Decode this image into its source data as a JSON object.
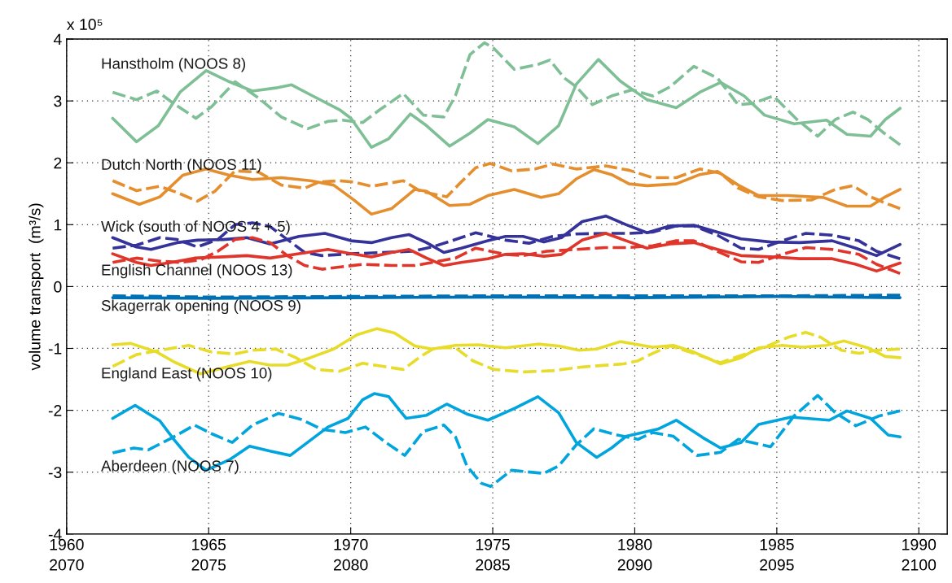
{
  "chart_data": {
    "type": "line",
    "ylabel": "volume transport  (m³/s)",
    "annotations": [
      "x 10⁵"
    ],
    "xlim": [
      1960,
      1991
    ],
    "xticks": [
      1960,
      1965,
      1970,
      1975,
      1980,
      1985,
      1990
    ],
    "x2lim": [
      2070,
      2101
    ],
    "x2ticks": [
      2070,
      2075,
      2080,
      2085,
      2090,
      2095,
      2100
    ],
    "ylim": [
      -4,
      4
    ],
    "yticks": [
      -4,
      -3,
      -2,
      -1,
      0,
      1,
      2,
      3,
      4
    ],
    "grid": true,
    "marker": "none",
    "series": [
      {
        "name": "Hanstholm (NOOS 8)",
        "color": "#7fbf96",
        "line_style": "solid",
        "x": [
          1961.62,
          1962.46,
          1963.23,
          1963.99,
          1964.91,
          1965.73,
          1966.54,
          1967.36,
          1967.92,
          1968.58,
          1969.6,
          1970.01,
          1970.73,
          1971.34,
          1972.1,
          1972.67,
          1973.48,
          1974.2,
          1974.83,
          1975.76,
          1976.59,
          1977.32,
          1977.94,
          1978.72,
          1979.49,
          1980.43,
          1981.46,
          1982.29,
          1983.02,
          1983.85,
          1984.57,
          1985.61,
          1986.75,
          1987.47,
          1988.3,
          1988.82,
          1989.34
        ],
        "values": [
          2.72,
          2.34,
          2.6,
          3.14,
          3.49,
          3.31,
          3.16,
          3.21,
          3.26,
          3.1,
          2.86,
          2.72,
          2.25,
          2.39,
          2.79,
          2.6,
          2.27,
          2.48,
          2.7,
          2.58,
          2.31,
          2.6,
          3.27,
          3.67,
          3.32,
          3.02,
          2.89,
          3.14,
          3.3,
          3.08,
          2.77,
          2.63,
          2.69,
          2.46,
          2.43,
          2.7,
          2.88
        ]
      },
      {
        "color": "#7fbf96",
        "line_style": "dashed",
        "x": [
          1961.62,
          1962.46,
          1963.18,
          1963.79,
          1964.55,
          1965.11,
          1965.93,
          1966.75,
          1967.56,
          1968.48,
          1969.2,
          1969.71,
          1970.42,
          1971.03,
          1971.85,
          1972.56,
          1973.28,
          1973.69,
          1974.2,
          1974.71,
          1975.04,
          1975.76,
          1976.59,
          1977.01,
          1977.52,
          1977.94,
          1978.51,
          1979.18,
          1979.91,
          1980.63,
          1981.25,
          1982.08,
          1982.91,
          1983.64,
          1984.16,
          1984.88,
          1985.71,
          1986.44,
          1987.06,
          1987.68,
          1988.2,
          1988.72,
          1989.34
        ],
        "values": [
          3.14,
          3.02,
          3.16,
          2.95,
          2.72,
          2.91,
          3.31,
          3.05,
          2.74,
          2.55,
          2.67,
          2.69,
          2.65,
          2.86,
          3.12,
          2.77,
          2.74,
          3.09,
          3.75,
          3.94,
          3.85,
          3.51,
          3.59,
          3.66,
          3.37,
          3.23,
          2.94,
          3.08,
          3.18,
          3.08,
          3.23,
          3.56,
          3.37,
          2.94,
          2.96,
          3.08,
          2.7,
          2.43,
          2.7,
          2.82,
          2.7,
          2.5,
          2.29
        ]
      },
      {
        "name": "Dutch North (NOOS 11)",
        "color": "#e58e2e",
        "line_style": "solid",
        "x": [
          1961.62,
          1962.56,
          1963.28,
          1964.09,
          1964.91,
          1965.73,
          1966.54,
          1967.56,
          1968.58,
          1969.4,
          1970.11,
          1970.73,
          1971.44,
          1972.26,
          1972.67,
          1973.48,
          1974.2,
          1974.83,
          1975.76,
          1976.7,
          1977.32,
          1977.94,
          1978.56,
          1979.18,
          1979.8,
          1980.43,
          1981.46,
          1982.29,
          1982.91,
          1983.64,
          1984.36,
          1985.4,
          1986.64,
          1987.47,
          1988.3,
          1988.82,
          1989.34
        ],
        "values": [
          1.5,
          1.33,
          1.45,
          1.8,
          1.9,
          1.8,
          1.73,
          1.76,
          1.71,
          1.64,
          1.4,
          1.17,
          1.26,
          1.57,
          1.54,
          1.31,
          1.33,
          1.47,
          1.57,
          1.44,
          1.5,
          1.74,
          1.89,
          1.81,
          1.66,
          1.63,
          1.66,
          1.81,
          1.86,
          1.64,
          1.47,
          1.47,
          1.44,
          1.3,
          1.3,
          1.45,
          1.57
        ]
      },
      {
        "color": "#e58e2e",
        "line_style": "dashed",
        "x": [
          1961.62,
          1962.46,
          1963.28,
          1963.89,
          1964.6,
          1965.22,
          1965.93,
          1966.75,
          1967.56,
          1968.38,
          1968.89,
          1969.6,
          1970.11,
          1970.73,
          1971.85,
          1972.46,
          1973.38,
          1973.89,
          1974.4,
          1974.91,
          1975.66,
          1976.49,
          1977.11,
          1977.94,
          1978.98,
          1979.8,
          1980.63,
          1981.46,
          1982.29,
          1983.02,
          1983.64,
          1984.36,
          1985.19,
          1986.23,
          1987.06,
          1987.68,
          1988.3,
          1988.82,
          1989.34
        ],
        "values": [
          1.71,
          1.55,
          1.62,
          1.52,
          1.38,
          1.54,
          1.87,
          1.85,
          1.64,
          1.59,
          1.69,
          1.71,
          1.69,
          1.62,
          1.71,
          1.54,
          1.45,
          1.69,
          1.92,
          1.99,
          1.87,
          1.9,
          1.98,
          1.9,
          1.95,
          1.88,
          1.76,
          1.76,
          1.9,
          1.83,
          1.59,
          1.45,
          1.39,
          1.4,
          1.57,
          1.63,
          1.45,
          1.35,
          1.26
        ]
      },
      {
        "name": "Wick (south of NOOS 4 + 5)",
        "color": "#35339a",
        "line_style": "solid",
        "x": [
          1961.62,
          1962.46,
          1962.97,
          1963.89,
          1964.6,
          1965.52,
          1966.34,
          1967.16,
          1968.18,
          1969.09,
          1970.01,
          1970.73,
          1971.44,
          1972.05,
          1972.67,
          1973.28,
          1973.89,
          1974.83,
          1975.45,
          1976.07,
          1976.8,
          1977.42,
          1978.15,
          1978.98,
          1979.7,
          1980.43,
          1981.25,
          1982.08,
          1982.91,
          1983.74,
          1984.78,
          1985.81,
          1986.95,
          1987.78,
          1988.51,
          1989.34
        ],
        "values": [
          0.79,
          0.64,
          0.6,
          0.71,
          0.75,
          0.76,
          0.79,
          0.69,
          0.81,
          0.86,
          0.74,
          0.71,
          0.79,
          0.84,
          0.71,
          0.55,
          0.62,
          0.74,
          0.81,
          0.81,
          0.72,
          0.79,
          1.05,
          1.14,
          1.0,
          0.87,
          0.98,
          0.99,
          0.88,
          0.77,
          0.72,
          0.71,
          0.74,
          0.62,
          0.5,
          0.68
        ]
      },
      {
        "color": "#35339a",
        "line_style": "dashed",
        "x": [
          1961.62,
          1962.46,
          1963.28,
          1963.89,
          1964.6,
          1965.32,
          1965.93,
          1966.54,
          1967.16,
          1967.77,
          1968.38,
          1968.99,
          1970.01,
          1971.13,
          1972.16,
          1972.87,
          1973.69,
          1974.4,
          1975.45,
          1976.28,
          1977.11,
          1977.94,
          1978.98,
          1979.8,
          1980.63,
          1981.46,
          1982.08,
          1982.91,
          1983.74,
          1984.36,
          1985.19,
          1986.02,
          1986.95,
          1987.89,
          1988.51,
          1989.34
        ],
        "values": [
          0.62,
          0.67,
          0.79,
          0.76,
          0.64,
          0.76,
          1.0,
          1.03,
          0.97,
          0.76,
          0.55,
          0.5,
          0.53,
          0.55,
          0.57,
          0.64,
          0.76,
          0.87,
          0.75,
          0.7,
          0.81,
          0.85,
          0.86,
          0.86,
          0.88,
          0.98,
          0.98,
          0.83,
          0.62,
          0.6,
          0.74,
          0.86,
          0.83,
          0.74,
          0.57,
          0.45
        ]
      },
      {
        "name": "English Channel (NOOS 13)",
        "color": "#e0352a",
        "line_style": "solid",
        "x": [
          1961.62,
          1962.46,
          1962.97,
          1963.69,
          1964.5,
          1965.52,
          1966.34,
          1967.16,
          1968.18,
          1969.2,
          1970.01,
          1970.73,
          1971.44,
          1972.05,
          1972.67,
          1973.28,
          1973.89,
          1974.83,
          1975.45,
          1976.07,
          1976.8,
          1977.42,
          1978.15,
          1978.98,
          1979.7,
          1980.43,
          1981.25,
          1982.08,
          1982.91,
          1983.74,
          1984.78,
          1985.81,
          1986.95,
          1987.78,
          1988.51,
          1989.34
        ],
        "values": [
          0.53,
          0.39,
          0.34,
          0.39,
          0.46,
          0.48,
          0.5,
          0.46,
          0.53,
          0.6,
          0.53,
          0.48,
          0.55,
          0.6,
          0.46,
          0.34,
          0.39,
          0.45,
          0.52,
          0.53,
          0.49,
          0.52,
          0.75,
          0.86,
          0.74,
          0.62,
          0.69,
          0.71,
          0.6,
          0.5,
          0.48,
          0.45,
          0.45,
          0.36,
          0.25,
          0.38
        ]
      },
      {
        "color": "#e0352a",
        "line_style": "dashed",
        "x": [
          1961.62,
          1962.46,
          1963.28,
          1963.99,
          1964.71,
          1965.32,
          1965.93,
          1966.54,
          1967.16,
          1967.77,
          1968.38,
          1968.99,
          1969.71,
          1970.42,
          1971.44,
          1972.26,
          1972.87,
          1973.69,
          1974.4,
          1975.45,
          1976.07,
          1976.9,
          1977.94,
          1978.98,
          1979.8,
          1980.63,
          1981.46,
          1982.08,
          1982.91,
          1983.74,
          1984.36,
          1985.19,
          1986.02,
          1986.95,
          1987.89,
          1988.51,
          1989.34
        ],
        "values": [
          0.39,
          0.46,
          0.41,
          0.39,
          0.43,
          0.57,
          0.76,
          0.79,
          0.71,
          0.5,
          0.34,
          0.28,
          0.32,
          0.36,
          0.34,
          0.34,
          0.39,
          0.46,
          0.62,
          0.52,
          0.5,
          0.57,
          0.6,
          0.63,
          0.63,
          0.66,
          0.74,
          0.74,
          0.57,
          0.4,
          0.39,
          0.52,
          0.63,
          0.6,
          0.52,
          0.36,
          0.21
        ]
      },
      {
        "name": "Skagerrak opening (NOOS 9)",
        "color": "#0070b5",
        "line_style": "solid",
        "x": [
          1961.62,
          1965,
          1970,
          1975,
          1980,
          1985,
          1989.34
        ],
        "values": [
          -0.18,
          -0.19,
          -0.18,
          -0.17,
          -0.18,
          -0.16,
          -0.18
        ]
      },
      {
        "color": "#0070b5",
        "line_style": "dashed",
        "x": [
          1961.62,
          1965,
          1970,
          1975,
          1980,
          1985,
          1989.34
        ],
        "values": [
          -0.15,
          -0.17,
          -0.16,
          -0.15,
          -0.15,
          -0.15,
          -0.14
        ]
      },
      {
        "name": "England East (NOOS 10)",
        "color": "#e8dc2a",
        "line_style": "solid",
        "x": [
          1961.62,
          1962.26,
          1963.18,
          1963.79,
          1964.71,
          1965.73,
          1966.44,
          1967.16,
          1967.77,
          1968.58,
          1969.4,
          1970.22,
          1970.93,
          1971.54,
          1972.26,
          1972.87,
          1973.69,
          1974.5,
          1974.83,
          1975.45,
          1976.59,
          1977.32,
          1978.04,
          1978.66,
          1979.49,
          1980.63,
          1981.36,
          1982.08,
          1983.02,
          1983.74,
          1984.36,
          1985.19,
          1985.92,
          1986.75,
          1987.37,
          1988.2,
          1988.82,
          1989.34
        ],
        "values": [
          -0.94,
          -0.92,
          -1.06,
          -1.22,
          -1.41,
          -1.29,
          -1.21,
          -1.27,
          -1.27,
          -1.15,
          -1.01,
          -0.78,
          -0.68,
          -0.75,
          -0.96,
          -1.01,
          -0.95,
          -0.94,
          -0.96,
          -0.99,
          -0.93,
          -0.96,
          -1.03,
          -1.01,
          -0.89,
          -0.98,
          -0.95,
          -1.06,
          -1.25,
          -1.15,
          -0.99,
          -0.95,
          -0.98,
          -0.95,
          -0.88,
          -0.99,
          -1.13,
          -1.15
        ]
      },
      {
        "color": "#e8dc2a",
        "line_style": "dashed",
        "x": [
          1961.62,
          1962.46,
          1963.28,
          1964.3,
          1965.11,
          1965.93,
          1966.54,
          1967.36,
          1968.07,
          1968.79,
          1969.6,
          1970.42,
          1971.13,
          1971.85,
          1972.46,
          1972.97,
          1973.69,
          1974.3,
          1975.04,
          1976.07,
          1977.11,
          1978.15,
          1979.6,
          1980.11,
          1980.63,
          1981.25,
          1982.08,
          1983.02,
          1983.95,
          1984.78,
          1985.4,
          1986.02,
          1986.54,
          1987.27,
          1987.89,
          1988.51,
          1989.34
        ],
        "values": [
          -1.29,
          -1.1,
          -1.03,
          -0.95,
          -1.06,
          -1.09,
          -1.03,
          -1.01,
          -1.15,
          -1.34,
          -1.37,
          -1.24,
          -1.29,
          -1.34,
          -1.13,
          -0.99,
          -0.99,
          -1.2,
          -1.34,
          -1.38,
          -1.36,
          -1.3,
          -1.25,
          -1.2,
          -1.08,
          -0.96,
          -1.08,
          -1.23,
          -1.08,
          -0.94,
          -0.82,
          -0.74,
          -0.82,
          -1.03,
          -1.08,
          -1.03,
          -1.01
        ]
      },
      {
        "name": "Aberdeen (NOOS 7)",
        "color": "#00a5de",
        "line_style": "solid",
        "x": [
          1961.62,
          1962.41,
          1963.28,
          1963.79,
          1964.3,
          1964.91,
          1965.73,
          1966.44,
          1967.16,
          1967.87,
          1968.48,
          1969.2,
          1969.91,
          1970.42,
          1970.83,
          1971.34,
          1971.95,
          1972.67,
          1973.38,
          1974.09,
          1974.83,
          1975.76,
          1976.59,
          1977.32,
          1977.94,
          1978.66,
          1979.18,
          1979.7,
          1980.84,
          1981.46,
          1982.39,
          1983.02,
          1983.74,
          1984.36,
          1985.5,
          1986.85,
          1987.47,
          1988.3,
          1988.92,
          1989.34
        ],
        "values": [
          -2.13,
          -1.92,
          -2.17,
          -2.48,
          -2.76,
          -2.97,
          -2.8,
          -2.58,
          -2.66,
          -2.73,
          -2.52,
          -2.27,
          -2.13,
          -1.83,
          -1.73,
          -1.78,
          -2.13,
          -2.08,
          -1.9,
          -2.06,
          -2.16,
          -1.97,
          -1.78,
          -2.04,
          -2.52,
          -2.76,
          -2.61,
          -2.42,
          -2.3,
          -2.16,
          -2.44,
          -2.61,
          -2.52,
          -2.23,
          -2.11,
          -2.16,
          -2.01,
          -2.13,
          -2.4,
          -2.43
        ]
      },
      {
        "color": "#00a5de",
        "line_style": "dashed",
        "x": [
          1961.62,
          1962.36,
          1962.87,
          1963.69,
          1964.5,
          1965.11,
          1965.83,
          1966.54,
          1967.46,
          1968.28,
          1968.99,
          1969.81,
          1970.52,
          1971.24,
          1971.9,
          1972.56,
          1973.28,
          1973.69,
          1974.09,
          1974.6,
          1974.93,
          1975.66,
          1976.8,
          1977.32,
          1977.94,
          1978.56,
          1979.39,
          1980.11,
          1980.63,
          1981.36,
          1982.19,
          1983.02,
          1983.64,
          1984.78,
          1985.61,
          1986.44,
          1987.06,
          1987.78,
          1988.61,
          1989.34
        ],
        "values": [
          -2.69,
          -2.61,
          -2.64,
          -2.45,
          -2.24,
          -2.38,
          -2.52,
          -2.24,
          -2.05,
          -2.15,
          -2.31,
          -2.36,
          -2.27,
          -2.52,
          -2.73,
          -2.34,
          -2.24,
          -2.43,
          -2.9,
          -3.18,
          -3.23,
          -2.97,
          -3.02,
          -2.9,
          -2.56,
          -2.3,
          -2.4,
          -2.47,
          -2.36,
          -2.42,
          -2.73,
          -2.68,
          -2.47,
          -2.59,
          -2.09,
          -1.76,
          -2.04,
          -2.25,
          -2.09,
          -2.01
        ]
      }
    ]
  }
}
